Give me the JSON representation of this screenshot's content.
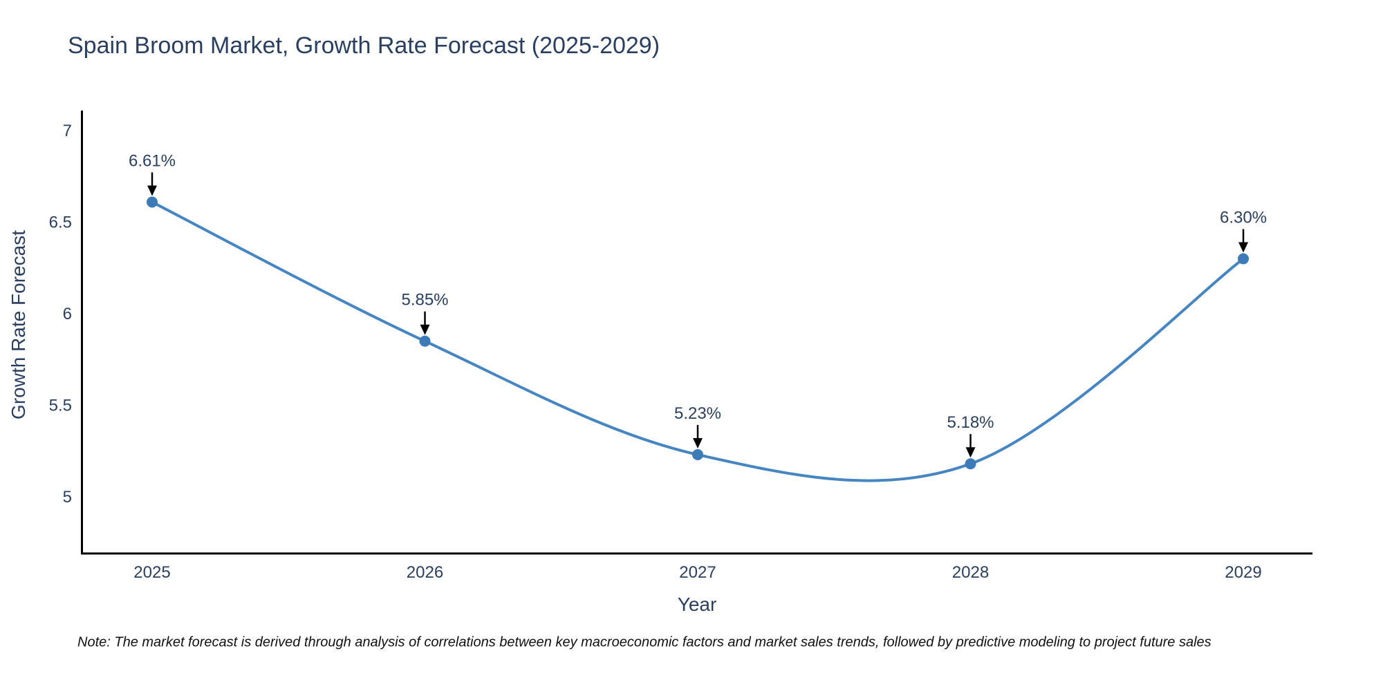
{
  "header": {
    "title": "Spain Broom Market, Growth Rate Forecast (2025-2029)"
  },
  "chart_data": {
    "type": "line",
    "line_shape": "spline",
    "x": [
      "2025",
      "2026",
      "2027",
      "2028",
      "2029"
    ],
    "y": [
      6.61,
      5.85,
      5.23,
      5.18,
      6.3
    ],
    "point_labels": [
      "6.61%",
      "5.85%",
      "5.23%",
      "5.18%",
      "6.30%"
    ],
    "title": "Spain Broom Market, Growth Rate Forecast (2025-2029)",
    "xlabel": "Year",
    "ylabel": "Growth Rate Forecast",
    "ytick_values": [
      7,
      6.5,
      6,
      5.5,
      5
    ],
    "ytick_labels": [
      "7",
      "6.5",
      "6",
      "5.5",
      "5"
    ],
    "ylim": [
      4.69,
      7.11
    ],
    "grid": false,
    "legend": "none",
    "colors": {
      "line": "#4585c1",
      "marker": "#3d7ab8",
      "axis_line": "#000000",
      "text": "#2a3f5f",
      "arrow": "#000000"
    }
  },
  "footer": {
    "note": "Note: The market forecast is derived through analysis of correlations between key macroeconomic factors and market sales trends, followed by predictive modeling to project future sales"
  }
}
